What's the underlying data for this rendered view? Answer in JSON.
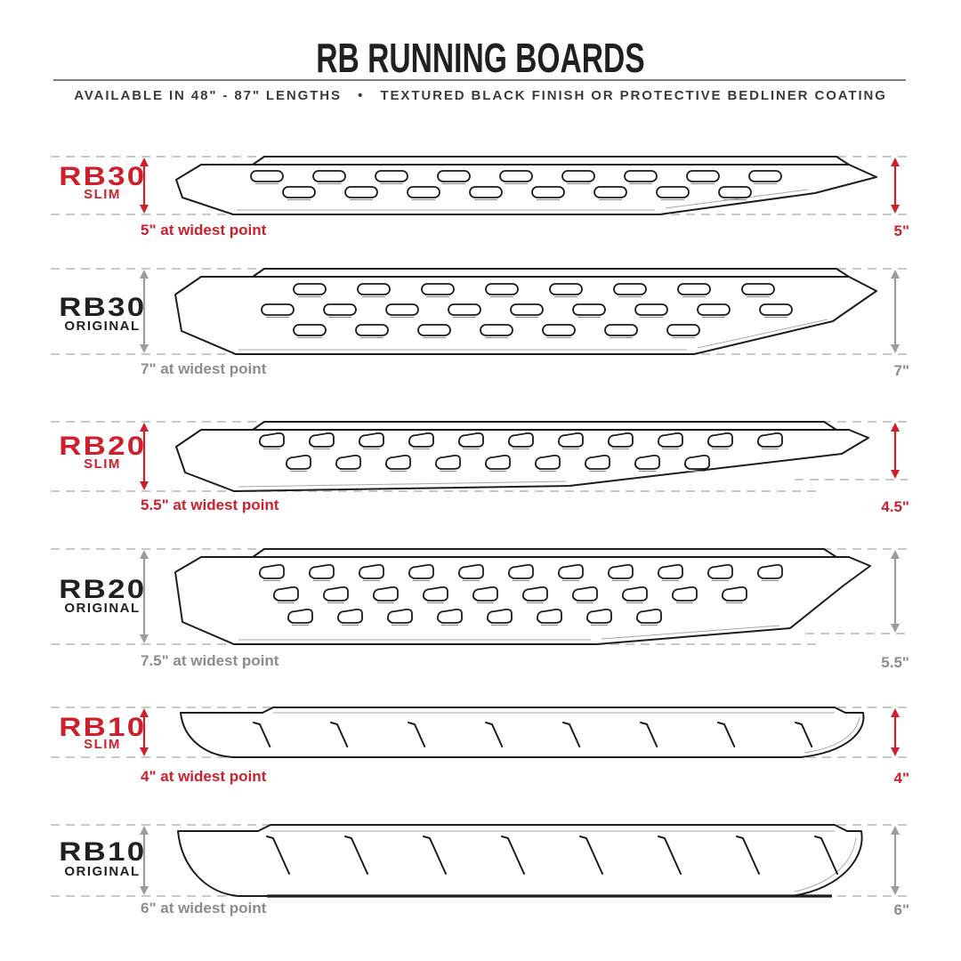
{
  "header": {
    "title": "RB RUNNING BOARDS",
    "subtitle": "AVAILABLE IN 48\" - 87\" LENGTHS   •   TEXTURED BLACK FINISH OR PROTECTIVE BEDLINER COATING"
  },
  "colors": {
    "accent_red": "#CE202C",
    "ink": "#231F20",
    "dim_gray": "#8C8C8C",
    "arrow_gray": "#9C9C9C",
    "dash_gray": "#C9C9C9",
    "line_black": "#1D1D1B",
    "inner_line_gray": "#A9A9A9",
    "rule_gray": "#7F7F7F",
    "subtitle_gray": "#3B3B3B"
  },
  "rows": [
    {
      "model": "RB30",
      "variant": "SLIM",
      "accent": "red",
      "widest_point_label": "5\" at widest point",
      "end_height_label": "5\"",
      "tread_pattern": "oval-slots-2-rows"
    },
    {
      "model": "RB30",
      "variant": "ORIGINAL",
      "accent": "gray",
      "widest_point_label": "7\" at widest point",
      "end_height_label": "7\"",
      "tread_pattern": "oval-slots-3-rows"
    },
    {
      "model": "RB20",
      "variant": "SLIM",
      "accent": "red",
      "widest_point_label": "5.5\" at widest point",
      "end_height_label": "4.5\"",
      "tread_pattern": "d-slots-2-rows"
    },
    {
      "model": "RB20",
      "variant": "ORIGINAL",
      "accent": "gray",
      "widest_point_label": "7.5\" at widest point",
      "end_height_label": "5.5\"",
      "tread_pattern": "d-slots-3-rows"
    },
    {
      "model": "RB10",
      "variant": "SLIM",
      "accent": "red",
      "widest_point_label": "4\" at widest point",
      "end_height_label": "4\"",
      "tread_pattern": "diagonal-ticks"
    },
    {
      "model": "RB10",
      "variant": "ORIGINAL",
      "accent": "gray",
      "widest_point_label": "6\" at widest point",
      "end_height_label": "6\"",
      "tread_pattern": "diagonal-ticks"
    }
  ]
}
